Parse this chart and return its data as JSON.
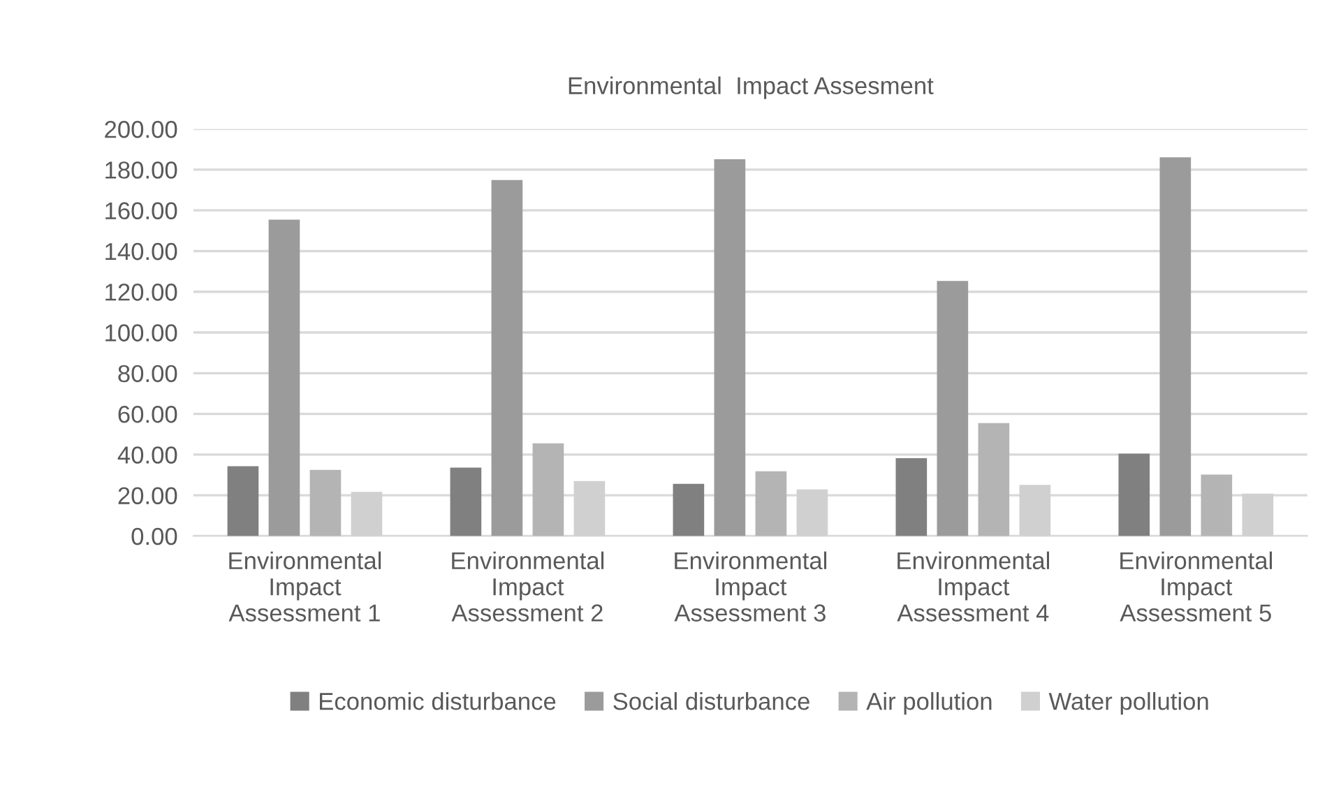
{
  "chart_data": {
    "type": "bar",
    "title": "Environmental  Impact Assesment",
    "categories": [
      "Environmental\nImpact\nAssessment 1",
      "Environmental\nImpact\nAssessment 2",
      "Environmental\nImpact\nAssessment 3",
      "Environmental\nImpact\nAssessment 4",
      "Environmental\nImpact\nAssessment 5"
    ],
    "series": [
      {
        "name": "Economic disturbance",
        "color": "#808080",
        "values": [
          34.3,
          33.6,
          25.6,
          38.2,
          40.5
        ]
      },
      {
        "name": "Social disturbance",
        "color": "#9b9b9b",
        "values": [
          155.4,
          174.9,
          185.1,
          125.3,
          186.1
        ]
      },
      {
        "name": "Air pollution",
        "color": "#b4b4b4",
        "values": [
          32.5,
          45.5,
          31.8,
          55.5,
          30.2
        ]
      },
      {
        "name": "Water pollution",
        "color": "#d0d0d0",
        "values": [
          21.7,
          27.0,
          22.9,
          25.1,
          20.8
        ]
      }
    ],
    "ylim": [
      0,
      200
    ],
    "yticks": [
      {
        "value": 0,
        "label": "0.00"
      },
      {
        "value": 20,
        "label": "20.00"
      },
      {
        "value": 40,
        "label": "40.00"
      },
      {
        "value": 60,
        "label": "60.00"
      },
      {
        "value": 80,
        "label": "80.00"
      },
      {
        "value": 100,
        "label": "100.00"
      },
      {
        "value": 120,
        "label": "120.00"
      },
      {
        "value": 140,
        "label": "140.00"
      },
      {
        "value": 160,
        "label": "160.00"
      },
      {
        "value": 180,
        "label": "180.00"
      },
      {
        "value": 200,
        "label": "200.00"
      }
    ],
    "grid": "y",
    "legend": "bottom"
  }
}
